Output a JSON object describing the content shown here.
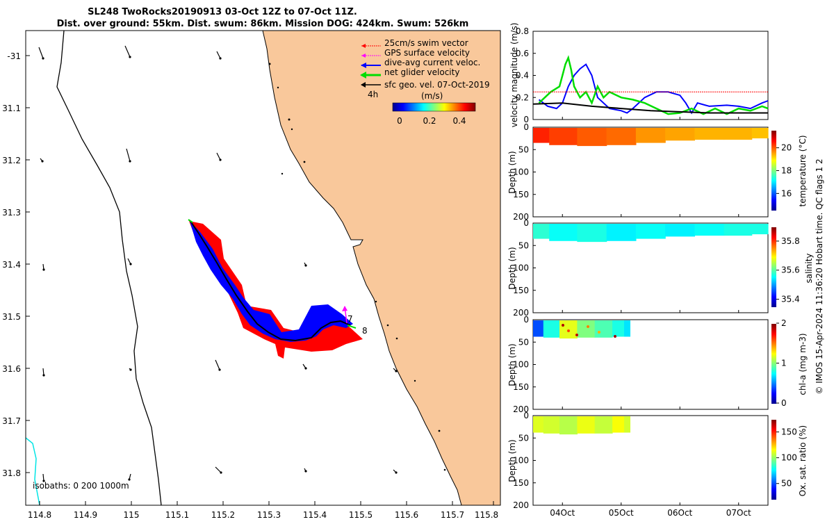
{
  "title": {
    "line1": "SL248 TwoRocks20190913 03-Oct 12Z to 07-Oct 11Z.",
    "line2": "Dist. over ground: 55km. Dist. swum: 86km. Mission DOG: 424km. Swum: 526km"
  },
  "map": {
    "lat_ticks": [
      "-31",
      "31.1",
      "31.2",
      "31.3",
      "31.4",
      "31.5",
      "31.6",
      "31.7",
      "31.8"
    ],
    "lon_ticks": [
      "114.8",
      "114.9",
      "115",
      "115.1",
      "115.2",
      "115.3",
      "115.4",
      "115.5",
      "115.6",
      "115.7",
      "115.8"
    ],
    "legend": [
      {
        "label": "25cm/s swim vector",
        "color": "#ff0000"
      },
      {
        "label": "GPS surface velocity",
        "color": "#ff00ff"
      },
      {
        "label": "dive-avg current veloc.",
        "color": "#0000ff"
      },
      {
        "label": "net glider velocity",
        "color": "#00dd00"
      },
      {
        "label": "sfc geo. vel. 07-Oct-2019",
        "color": "#000000"
      }
    ],
    "legend_4h": "4h",
    "colorbar_units": "(m/s)",
    "colorbar_ticks": [
      "0",
      "0.2",
      "0.4"
    ],
    "isobaths": "isobaths: 0   200  1000m",
    "point_labels": [
      "7",
      "8"
    ],
    "land_color": "#f9c89b"
  },
  "chart_data": [
    {
      "type": "line",
      "title": "",
      "ylabel": "velocity magnitude (m/s)",
      "ylim": [
        0,
        0.8
      ],
      "yticks": [
        "0",
        "0.2",
        "0.4",
        "0.6",
        "0.8"
      ],
      "xlim_days": [
        3.5,
        7.5
      ],
      "series": [
        {
          "name": "dive-avg current veloc.",
          "color": "#0000ff",
          "x": [
            3.6,
            3.75,
            3.9,
            4.0,
            4.1,
            4.2,
            4.3,
            4.4,
            4.5,
            4.6,
            4.8,
            5.0,
            5.1,
            5.2,
            5.4,
            5.6,
            5.8,
            6.0,
            6.1,
            6.2,
            6.3,
            6.5,
            6.8,
            7.0,
            7.2,
            7.4,
            7.5
          ],
          "values": [
            0.18,
            0.12,
            0.1,
            0.15,
            0.3,
            0.4,
            0.46,
            0.5,
            0.4,
            0.2,
            0.1,
            0.08,
            0.06,
            0.1,
            0.2,
            0.25,
            0.25,
            0.22,
            0.15,
            0.06,
            0.15,
            0.12,
            0.13,
            0.12,
            0.1,
            0.15,
            0.17
          ]
        },
        {
          "name": "net glider velocity",
          "color": "#00dd00",
          "x": [
            3.6,
            3.8,
            3.95,
            4.0,
            4.05,
            4.1,
            4.15,
            4.2,
            4.3,
            4.4,
            4.5,
            4.6,
            4.7,
            4.8,
            5.0,
            5.2,
            5.4,
            5.6,
            5.8,
            6.0,
            6.2,
            6.4,
            6.6,
            6.8,
            7.0,
            7.2,
            7.4,
            7.5
          ],
          "values": [
            0.15,
            0.25,
            0.3,
            0.4,
            0.5,
            0.56,
            0.45,
            0.3,
            0.2,
            0.25,
            0.15,
            0.3,
            0.2,
            0.25,
            0.2,
            0.18,
            0.15,
            0.1,
            0.05,
            0.06,
            0.1,
            0.05,
            0.1,
            0.05,
            0.1,
            0.08,
            0.12,
            0.1
          ]
        },
        {
          "name": "swim speed",
          "color": "#ff0000",
          "x": [
            3.5,
            7.5
          ],
          "values": [
            0.25,
            0.25
          ]
        },
        {
          "name": "sfc geo. vel.",
          "color": "#000000",
          "x": [
            3.5,
            4.0,
            4.5,
            5.0,
            5.5,
            6.0,
            6.5,
            7.0,
            7.5
          ],
          "values": [
            0.14,
            0.15,
            0.12,
            0.1,
            0.08,
            0.07,
            0.06,
            0.06,
            0.06
          ]
        }
      ]
    },
    {
      "type": "heatmap",
      "ylabel": "Depth (m)",
      "yticks": [
        "0",
        "50",
        "100",
        "150",
        "200"
      ],
      "colorbar_label": "temperature (°C)",
      "colorbar_ticks": [
        "16",
        "18",
        "20"
      ],
      "clim": [
        14.5,
        21.5
      ],
      "columns": [
        {
          "day": 3.55,
          "max_depth": 35,
          "value": 20.4
        },
        {
          "day": 4.0,
          "max_depth": 40,
          "value": 20.2
        },
        {
          "day": 4.5,
          "max_depth": 42,
          "value": 20.0
        },
        {
          "day": 5.0,
          "max_depth": 40,
          "value": 19.9
        },
        {
          "day": 5.5,
          "max_depth": 35,
          "value": 19.6
        },
        {
          "day": 6.0,
          "max_depth": 30,
          "value": 19.5
        },
        {
          "day": 6.5,
          "max_depth": 28,
          "value": 19.4
        },
        {
          "day": 7.0,
          "max_depth": 28,
          "value": 19.4
        },
        {
          "day": 7.45,
          "max_depth": 25,
          "value": 19.3
        }
      ]
    },
    {
      "type": "heatmap",
      "ylabel": "Depth (m)",
      "yticks": [
        "0",
        "50",
        "100",
        "150",
        "200"
      ],
      "colorbar_label": "salinity",
      "colorbar_ticks": [
        "35.4",
        "35.6",
        "35.8"
      ],
      "clim": [
        35.35,
        35.9
      ],
      "columns": [
        {
          "day": 3.55,
          "max_depth": 35,
          "value": 35.58
        },
        {
          "day": 4.0,
          "max_depth": 40,
          "value": 35.56
        },
        {
          "day": 4.5,
          "max_depth": 42,
          "value": 35.57
        },
        {
          "day": 5.0,
          "max_depth": 40,
          "value": 35.55
        },
        {
          "day": 5.5,
          "max_depth": 35,
          "value": 35.56
        },
        {
          "day": 6.0,
          "max_depth": 30,
          "value": 35.55
        },
        {
          "day": 6.5,
          "max_depth": 28,
          "value": 35.56
        },
        {
          "day": 7.0,
          "max_depth": 28,
          "value": 35.57
        },
        {
          "day": 7.45,
          "max_depth": 25,
          "value": 35.57
        }
      ]
    },
    {
      "type": "heatmap",
      "ylabel": "Depth (m)",
      "yticks": [
        "0",
        "50",
        "100",
        "150",
        "200"
      ],
      "colorbar_label": "chl-a (mg m-3)",
      "colorbar_ticks": [
        "0",
        "1",
        "2"
      ],
      "clim": [
        0,
        2
      ],
      "columns": [
        {
          "day": 3.55,
          "max_depth": 38,
          "value": 0.4
        },
        {
          "day": 3.8,
          "max_depth": 40,
          "value": 0.8
        },
        {
          "day": 4.1,
          "max_depth": 42,
          "value": 1.2
        },
        {
          "day": 4.4,
          "max_depth": 40,
          "value": 1.0
        },
        {
          "day": 4.7,
          "max_depth": 40,
          "value": 0.9
        },
        {
          "day": 5.0,
          "max_depth": 38,
          "value": 0.8
        },
        {
          "day": 5.1,
          "max_depth": 38,
          "value": 0.7
        }
      ]
    },
    {
      "type": "heatmap",
      "ylabel": "Depth (m)",
      "yticks": [
        "0",
        "50",
        "100",
        "150",
        "200"
      ],
      "colorbar_label": "Ox. sat. ratio (%)",
      "colorbar_ticks": [
        "50",
        "100",
        "150"
      ],
      "clim": [
        20,
        175
      ],
      "xticks": [
        "04Oct",
        "05Oct",
        "06Oct",
        "07Oct"
      ],
      "columns": [
        {
          "day": 3.55,
          "max_depth": 38,
          "value": 112
        },
        {
          "day": 3.8,
          "max_depth": 40,
          "value": 110
        },
        {
          "day": 4.1,
          "max_depth": 42,
          "value": 106
        },
        {
          "day": 4.4,
          "max_depth": 40,
          "value": 114
        },
        {
          "day": 4.7,
          "max_depth": 40,
          "value": 108
        },
        {
          "day": 5.0,
          "max_depth": 38,
          "value": 116
        },
        {
          "day": 5.1,
          "max_depth": 38,
          "value": 110
        }
      ]
    }
  ],
  "footer": "© IMOS 15-Apr-2024 11:36:20 Hobart time. QC flags 1  2"
}
